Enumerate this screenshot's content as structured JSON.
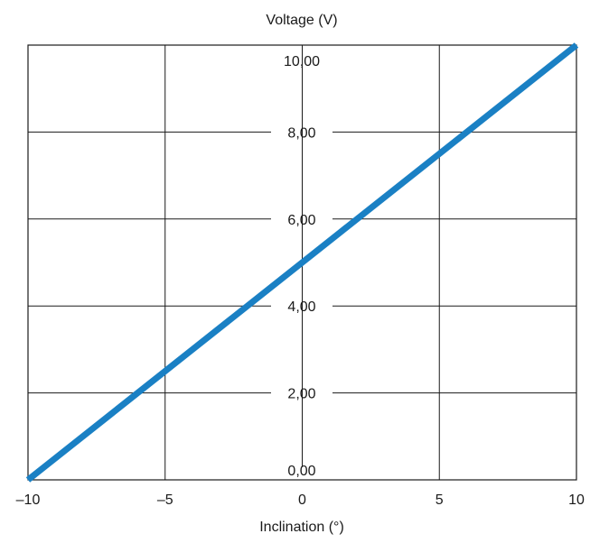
{
  "chart_data": {
    "type": "line",
    "title": "",
    "xlabel": "Inclination (°)",
    "ylabel": "Voltage (V)",
    "xlim": [
      -10,
      10
    ],
    "ylim": [
      0,
      10
    ],
    "x_ticks": [
      "–10",
      "–5",
      "0",
      "5",
      "10"
    ],
    "x_tick_values": [
      -10,
      -5,
      0,
      5,
      10
    ],
    "y_ticks": [
      "0,00",
      "2,00",
      "4,00",
      "6,00",
      "8,00",
      "10,00"
    ],
    "y_tick_values": [
      0,
      2,
      4,
      6,
      8,
      10
    ],
    "grid": true,
    "series": [
      {
        "x": [
          -10,
          10
        ],
        "values": [
          0,
          10
        ]
      }
    ]
  },
  "colors": {
    "series_line": "#1a80c4",
    "grid": "#1a1a1a",
    "text": "#1a1a1a"
  }
}
